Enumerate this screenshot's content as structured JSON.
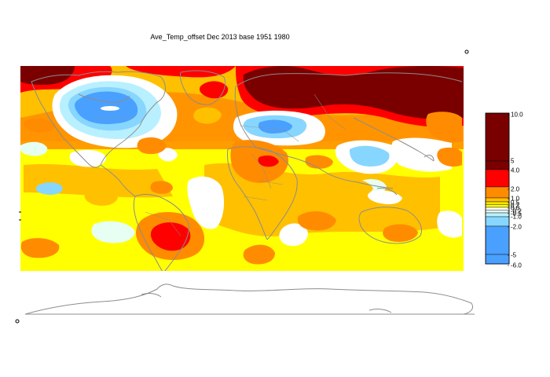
{
  "title": "Ave_Temp_offset Dec 2013  base 1951 1980",
  "legend": {
    "bins": [
      {
        "from": 5,
        "to": 10,
        "color": "#7a0000"
      },
      {
        "from": 4,
        "to": 5,
        "color": "#7a0000"
      },
      {
        "from": 2,
        "to": 4,
        "color": "#ff0000"
      },
      {
        "from": 1,
        "to": 2,
        "color": "#ff8c00"
      },
      {
        "from": 0.5,
        "to": 1,
        "color": "#ffc000"
      },
      {
        "from": 0.25,
        "to": 0.5,
        "color": "#ffe600"
      },
      {
        "from": 0,
        "to": 0.25,
        "color": "#ffff00"
      },
      {
        "from": -0.25,
        "to": 0,
        "color": "#ffffff"
      },
      {
        "from": -0.5,
        "to": -0.25,
        "color": "#e6fff2"
      },
      {
        "from": -1,
        "to": -0.5,
        "color": "#b8f0ff"
      },
      {
        "from": -2,
        "to": -1,
        "color": "#87d6ff"
      },
      {
        "from": -5,
        "to": -2,
        "color": "#4aa0ff"
      },
      {
        "from": -6,
        "to": -5,
        "color": "#4aa0ff"
      }
    ],
    "tick_labels": [
      "10.0",
      "5",
      "4.0",
      "2.0",
      "1.0",
      "0.5",
      "0.2",
      "0.0",
      "-0.2",
      "-0.5",
      "-1.0",
      "-2.0",
      "-5",
      "-6.0"
    ]
  },
  "colors": {
    "deep_red": "#7a0000",
    "red": "#ff0000",
    "orange": "#ff8c00",
    "light_orange": "#ffc000",
    "yellow": "#ffff00",
    "pale_green": "#e6fff2",
    "light_blue": "#b8f0ff",
    "sky_blue": "#87d6ff",
    "blue": "#4aa0ff",
    "coast": "#8c8c8c"
  }
}
